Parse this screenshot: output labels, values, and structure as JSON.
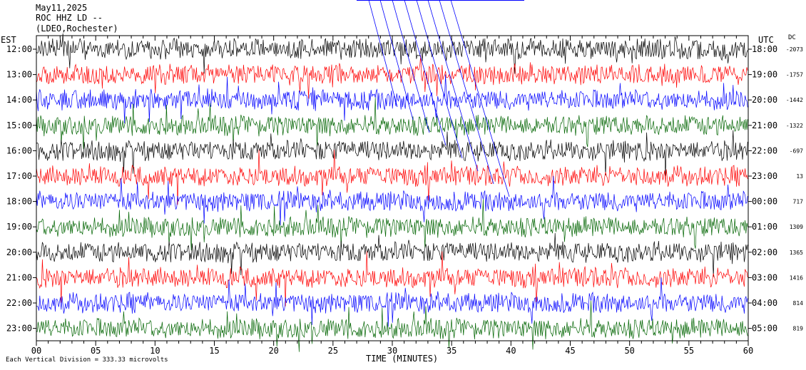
{
  "header": {
    "date": "May11,2025",
    "station": "ROC HHZ LD --",
    "network": "(LDEO,Rochester)"
  },
  "left_axis_label": "EST",
  "right_axis_label": "UTC",
  "dc_label": "DC",
  "x_axis_title": "TIME (MINUTES)",
  "footer_note": "Each Vertical Division =  333.33 microvolts",
  "colors": {
    "line1": "#000000",
    "line2": "#ff0000",
    "line3": "#0000ff",
    "line4": "#006400",
    "annot": "#0000ff"
  },
  "chart_data": {
    "type": "line",
    "title": "ROC HHZ LD --",
    "xlabel": "TIME (MINUTES)",
    "xlim": [
      0,
      60
    ],
    "x_ticks": [
      "00",
      "05",
      "10",
      "15",
      "20",
      "25",
      "30",
      "35",
      "40",
      "45",
      "50",
      "55",
      "60"
    ],
    "rows": [
      {
        "est": "12:00",
        "utc": "18:00",
        "dc": "-2073",
        "color": "#000000"
      },
      {
        "est": "13:00",
        "utc": "19:00",
        "dc": "-1757",
        "color": "#ff0000"
      },
      {
        "est": "14:00",
        "utc": "20:00",
        "dc": "-1442",
        "color": "#0000ff"
      },
      {
        "est": "15:00",
        "utc": "21:00",
        "dc": "-1322",
        "color": "#006400"
      },
      {
        "est": "16:00",
        "utc": "22:00",
        "dc": "-697",
        "color": "#000000"
      },
      {
        "est": "17:00",
        "utc": "23:00",
        "dc": "13",
        "color": "#ff0000"
      },
      {
        "est": "18:00",
        "utc": "00:00",
        "dc": "717",
        "color": "#0000ff"
      },
      {
        "est": "19:00",
        "utc": "01:00",
        "dc": "1309",
        "color": "#006400"
      },
      {
        "est": "20:00",
        "utc": "02:00",
        "dc": "1365",
        "color": "#000000"
      },
      {
        "est": "21:00",
        "utc": "03:00",
        "dc": "1416",
        "color": "#ff0000"
      },
      {
        "est": "22:00",
        "utc": "04:00",
        "dc": "814",
        "color": "#0000ff"
      },
      {
        "est": "23:00",
        "utc": "05:00",
        "dc": "819",
        "color": "#006400"
      }
    ]
  }
}
